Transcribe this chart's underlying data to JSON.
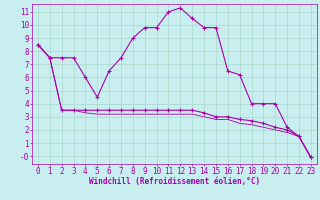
{
  "xlabel": "Windchill (Refroidissement éolien,°C)",
  "background_color": "#c8eef0",
  "grid_color": "#aad8cc",
  "line_color": "#aa00aa",
  "x_ticks": [
    0,
    1,
    2,
    3,
    4,
    5,
    6,
    7,
    8,
    9,
    10,
    11,
    12,
    13,
    14,
    15,
    16,
    17,
    18,
    19,
    20,
    21,
    22,
    23
  ],
  "y_ticks": [
    0,
    1,
    2,
    3,
    4,
    5,
    6,
    7,
    8,
    9,
    10,
    11
  ],
  "ylim": [
    -0.6,
    11.6
  ],
  "xlim": [
    -0.5,
    23.5
  ],
  "series1_x": [
    0,
    1,
    2,
    3,
    4,
    5,
    6,
    7,
    8,
    9,
    10,
    11,
    12,
    13,
    14,
    15,
    16,
    17,
    18,
    19,
    20,
    21,
    22,
    23
  ],
  "series1_y": [
    8.5,
    7.5,
    7.5,
    7.5,
    6.0,
    4.5,
    6.5,
    7.5,
    9.0,
    9.8,
    9.8,
    11.0,
    11.3,
    10.5,
    9.8,
    9.8,
    6.5,
    6.2,
    4.0,
    4.0,
    4.0,
    2.2,
    1.5,
    -0.1
  ],
  "series2_x": [
    0,
    1,
    2,
    3,
    4,
    5,
    6,
    7,
    8,
    9,
    10,
    11,
    12,
    13,
    14,
    15,
    16,
    17,
    18,
    19,
    20,
    21,
    22,
    23
  ],
  "series2_y": [
    8.5,
    7.5,
    3.5,
    3.5,
    3.5,
    3.5,
    3.5,
    3.5,
    3.5,
    3.5,
    3.5,
    3.5,
    3.5,
    3.5,
    3.3,
    3.0,
    3.0,
    2.8,
    2.7,
    2.5,
    2.2,
    2.0,
    1.5,
    -0.1
  ],
  "series3_x": [
    0,
    1,
    2,
    3,
    4,
    5,
    6,
    7,
    8,
    9,
    10,
    11,
    12,
    13,
    14,
    15,
    16,
    17,
    18,
    19,
    20,
    21,
    22,
    23
  ],
  "series3_y": [
    8.5,
    7.5,
    3.5,
    3.5,
    3.3,
    3.2,
    3.2,
    3.2,
    3.2,
    3.2,
    3.2,
    3.2,
    3.2,
    3.2,
    3.0,
    2.8,
    2.8,
    2.5,
    2.4,
    2.2,
    2.0,
    1.8,
    1.5,
    -0.1
  ],
  "tick_fontsize": 5.5,
  "xlabel_fontsize": 5.5
}
